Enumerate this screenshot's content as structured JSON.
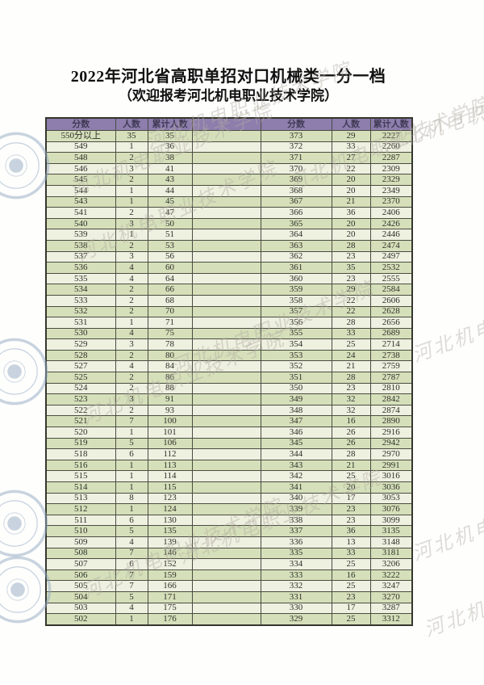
{
  "page": {
    "title": "2022年河北省高职单招对口机械类一分一档",
    "subtitle": "（欢迎报考河北机电职业技术学院）"
  },
  "table": {
    "headers": [
      "分数",
      "人数",
      "累计人数"
    ],
    "left_rows": [
      [
        "550分以上",
        "35",
        "35"
      ],
      [
        "549",
        "1",
        "36"
      ],
      [
        "548",
        "2",
        "38"
      ],
      [
        "546",
        "3",
        "41"
      ],
      [
        "545",
        "2",
        "43"
      ],
      [
        "544",
        "1",
        "44"
      ],
      [
        "543",
        "1",
        "45"
      ],
      [
        "541",
        "2",
        "47"
      ],
      [
        "540",
        "3",
        "50"
      ],
      [
        "539",
        "1",
        "51"
      ],
      [
        "538",
        "2",
        "53"
      ],
      [
        "537",
        "3",
        "56"
      ],
      [
        "536",
        "4",
        "60"
      ],
      [
        "535",
        "4",
        "64"
      ],
      [
        "534",
        "2",
        "66"
      ],
      [
        "533",
        "2",
        "68"
      ],
      [
        "532",
        "2",
        "70"
      ],
      [
        "531",
        "1",
        "71"
      ],
      [
        "530",
        "4",
        "75"
      ],
      [
        "529",
        "3",
        "78"
      ],
      [
        "528",
        "2",
        "80"
      ],
      [
        "527",
        "4",
        "84"
      ],
      [
        "525",
        "2",
        "86"
      ],
      [
        "524",
        "2",
        "88"
      ],
      [
        "523",
        "3",
        "91"
      ],
      [
        "522",
        "2",
        "93"
      ],
      [
        "521",
        "7",
        "100"
      ],
      [
        "520",
        "1",
        "101"
      ],
      [
        "519",
        "5",
        "106"
      ],
      [
        "518",
        "6",
        "112"
      ],
      [
        "516",
        "1",
        "113"
      ],
      [
        "515",
        "1",
        "114"
      ],
      [
        "514",
        "1",
        "115"
      ],
      [
        "513",
        "8",
        "123"
      ],
      [
        "512",
        "1",
        "124"
      ],
      [
        "511",
        "6",
        "130"
      ],
      [
        "510",
        "5",
        "135"
      ],
      [
        "509",
        "4",
        "139"
      ],
      [
        "508",
        "7",
        "146"
      ],
      [
        "507",
        "6",
        "152"
      ],
      [
        "506",
        "7",
        "159"
      ],
      [
        "505",
        "7",
        "166"
      ],
      [
        "504",
        "5",
        "171"
      ],
      [
        "503",
        "4",
        "175"
      ],
      [
        "502",
        "1",
        "176"
      ]
    ],
    "right_rows": [
      [
        "373",
        "29",
        "2227"
      ],
      [
        "372",
        "33",
        "2260"
      ],
      [
        "371",
        "27",
        "2287"
      ],
      [
        "370",
        "22",
        "2309"
      ],
      [
        "369",
        "20",
        "2329"
      ],
      [
        "368",
        "20",
        "2349"
      ],
      [
        "367",
        "21",
        "2370"
      ],
      [
        "366",
        "36",
        "2406"
      ],
      [
        "365",
        "20",
        "2426"
      ],
      [
        "364",
        "20",
        "2446"
      ],
      [
        "363",
        "28",
        "2474"
      ],
      [
        "362",
        "23",
        "2497"
      ],
      [
        "361",
        "35",
        "2532"
      ],
      [
        "360",
        "23",
        "2555"
      ],
      [
        "359",
        "29",
        "2584"
      ],
      [
        "358",
        "22",
        "2606"
      ],
      [
        "357",
        "22",
        "2628"
      ],
      [
        "356",
        "28",
        "2656"
      ],
      [
        "355",
        "33",
        "2689"
      ],
      [
        "354",
        "25",
        "2714"
      ],
      [
        "353",
        "24",
        "2738"
      ],
      [
        "352",
        "21",
        "2759"
      ],
      [
        "351",
        "28",
        "2787"
      ],
      [
        "350",
        "23",
        "2810"
      ],
      [
        "349",
        "32",
        "2842"
      ],
      [
        "348",
        "32",
        "2874"
      ],
      [
        "347",
        "16",
        "2890"
      ],
      [
        "346",
        "26",
        "2916"
      ],
      [
        "345",
        "26",
        "2942"
      ],
      [
        "344",
        "28",
        "2970"
      ],
      [
        "343",
        "21",
        "2991"
      ],
      [
        "342",
        "25",
        "3016"
      ],
      [
        "341",
        "20",
        "3036"
      ],
      [
        "340",
        "17",
        "3053"
      ],
      [
        "339",
        "23",
        "3076"
      ],
      [
        "338",
        "23",
        "3099"
      ],
      [
        "337",
        "36",
        "3135"
      ],
      [
        "336",
        "13",
        "3148"
      ],
      [
        "335",
        "33",
        "3181"
      ],
      [
        "334",
        "25",
        "3206"
      ],
      [
        "333",
        "16",
        "3222"
      ],
      [
        "332",
        "25",
        "3247"
      ],
      [
        "331",
        "23",
        "3270"
      ],
      [
        "330",
        "17",
        "3287"
      ],
      [
        "329",
        "25",
        "3312"
      ]
    ]
  },
  "watermark": {
    "text": "河北机电职业技术学院"
  },
  "colors": {
    "header_bg": "#8d7ead",
    "header_text": "#413a56",
    "row_green": "#d5e0ba",
    "row_cream": "#eef0e0",
    "border_inner": "#4b4c41",
    "border_outer": "#35362d",
    "cell_text": "#2f2f2a",
    "title_text": "#111111",
    "watermark_seal": "#93aac2",
    "watermark_text": "#b2aca2"
  }
}
